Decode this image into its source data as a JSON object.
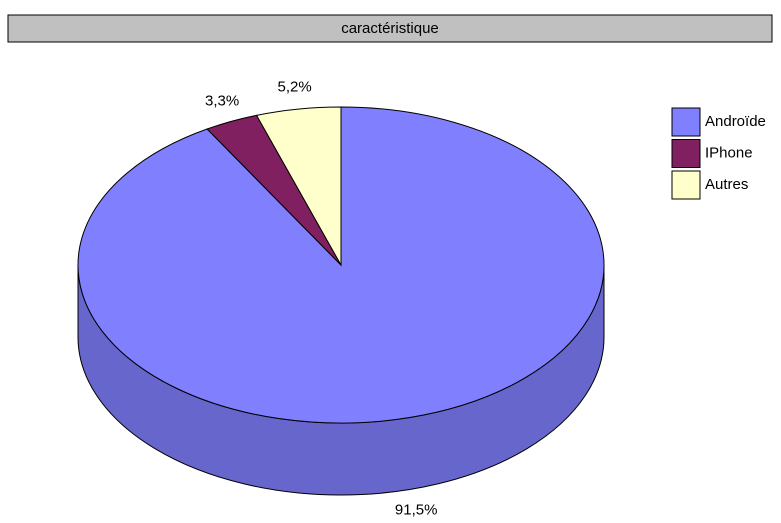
{
  "chart_data": {
    "type": "pie",
    "title": "caractéristique",
    "categories": [
      "Androïde",
      "IPhone",
      "Autres"
    ],
    "values": [
      91.5,
      3.3,
      5.2
    ],
    "value_labels": [
      "91,5%",
      "3,3%",
      "5,2%"
    ],
    "colors": [
      "#8080ff",
      "#802060",
      "#ffffcc"
    ],
    "legend": "right"
  }
}
